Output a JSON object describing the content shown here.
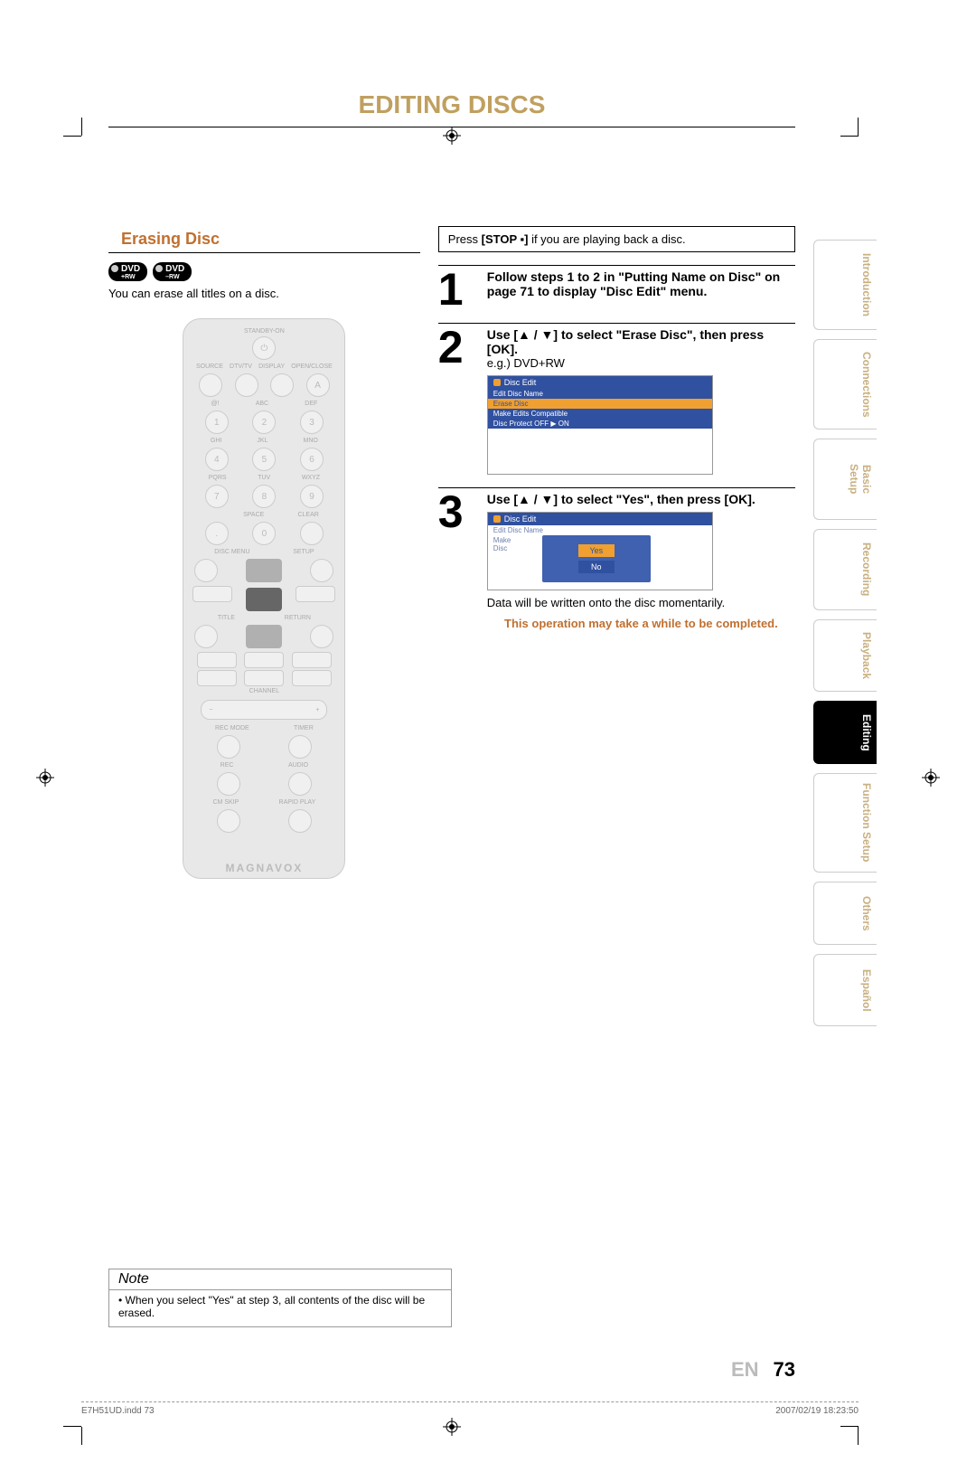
{
  "page": {
    "title": "EDITING DISCS",
    "lang_code": "EN",
    "number": "73"
  },
  "section": {
    "heading": "Erasing Disc",
    "badges": [
      {
        "main": "DVD",
        "sub": "+RW"
      },
      {
        "main": "DVD",
        "sub": "–RW"
      }
    ],
    "intro": "You can erase all titles on a disc."
  },
  "remote": {
    "top_label": "STANDBY-ON",
    "row_labels": [
      "SOURCE",
      "DTV/TV",
      "DISPLAY",
      "OPEN/CLOSE"
    ],
    "numpad_labels": [
      [
        "@!",
        "ABC",
        "DEF"
      ],
      [
        "GHI",
        "JKL",
        "MNO"
      ],
      [
        "PQRS",
        "TUV",
        "WXYZ"
      ],
      [
        "",
        "SPACE",
        "CLEAR"
      ]
    ],
    "numpad": [
      "1",
      "2",
      "3",
      "4",
      "5",
      "6",
      "7",
      "8",
      "9",
      ".",
      "0",
      ""
    ],
    "mid_labels_left": "DISC MENU",
    "mid_labels_right": "SETUP",
    "title_label": "TITLE",
    "return_label": "RETURN",
    "channel_label": "CHANNEL",
    "rec_mode": "REC MODE",
    "timer": "TIMER",
    "rec": "REC",
    "audio": "AUDIO",
    "cm_skip": "CM SKIP",
    "rapid_play": "RAPID PLAY",
    "brand": "MAGNAVOX"
  },
  "right": {
    "stop_note_pre": "Press ",
    "stop_note_bold": "[STOP ▪]",
    "stop_note_post": " if you are playing back a disc.",
    "steps": [
      {
        "num": "1",
        "bold": "Follow steps 1 to 2 in \"Putting Name on Disc\" on page 71 to display \"Disc Edit\" menu."
      },
      {
        "num": "2",
        "bold": "Use [▲ / ▼] to select \"Erase Disc\", then press [OK].",
        "plain": "e.g.) DVD+RW",
        "menu": {
          "title": "Disc Edit",
          "items": [
            "Edit Disc Name",
            "Erase Disc",
            "Make Edits Compatible",
            "Disc Protect OFF ▶ ON"
          ]
        }
      },
      {
        "num": "3",
        "bold": "Use [▲ / ▼] to select \"Yes\", then press [OK].",
        "dialog": {
          "title": "Disc Edit",
          "faded1": "Edit Disc Name",
          "faded2a": "Make",
          "faded2b": "Disc",
          "yes": "Yes",
          "no": "No"
        },
        "after": "Data will be written onto the disc momentarily.",
        "caution": "This operation may take a while to be completed."
      }
    ]
  },
  "note": {
    "title": "Note",
    "body": "• When you select \"Yes\" at step 3, all contents of the disc will be erased."
  },
  "tabs": [
    {
      "label": "Introduction",
      "cls": "tab-intro",
      "active": false
    },
    {
      "label": "Connections",
      "cls": "tab-conn",
      "active": false
    },
    {
      "label": "Basic Setup",
      "cls": "tab-basic",
      "active": false
    },
    {
      "label": "Recording",
      "cls": "tab-rec",
      "active": false
    },
    {
      "label": "Playback",
      "cls": "tab-play",
      "active": false
    },
    {
      "label": "Editing",
      "cls": "tab-edit",
      "active": true
    },
    {
      "label": "Function Setup",
      "cls": "tab-func",
      "active": false
    },
    {
      "label": "Others",
      "cls": "tab-oth",
      "active": false
    },
    {
      "label": "Español",
      "cls": "tab-esp",
      "active": false
    }
  ],
  "footer": {
    "left": "E7H51UD.indd   73",
    "right": "2007/02/19   18:23:50"
  },
  "colors": {
    "title": "#c0a060",
    "accent": "#c07030",
    "menu_bg": "#3050a0",
    "menu_item": "#4060b0",
    "highlight": "#f0a030"
  }
}
